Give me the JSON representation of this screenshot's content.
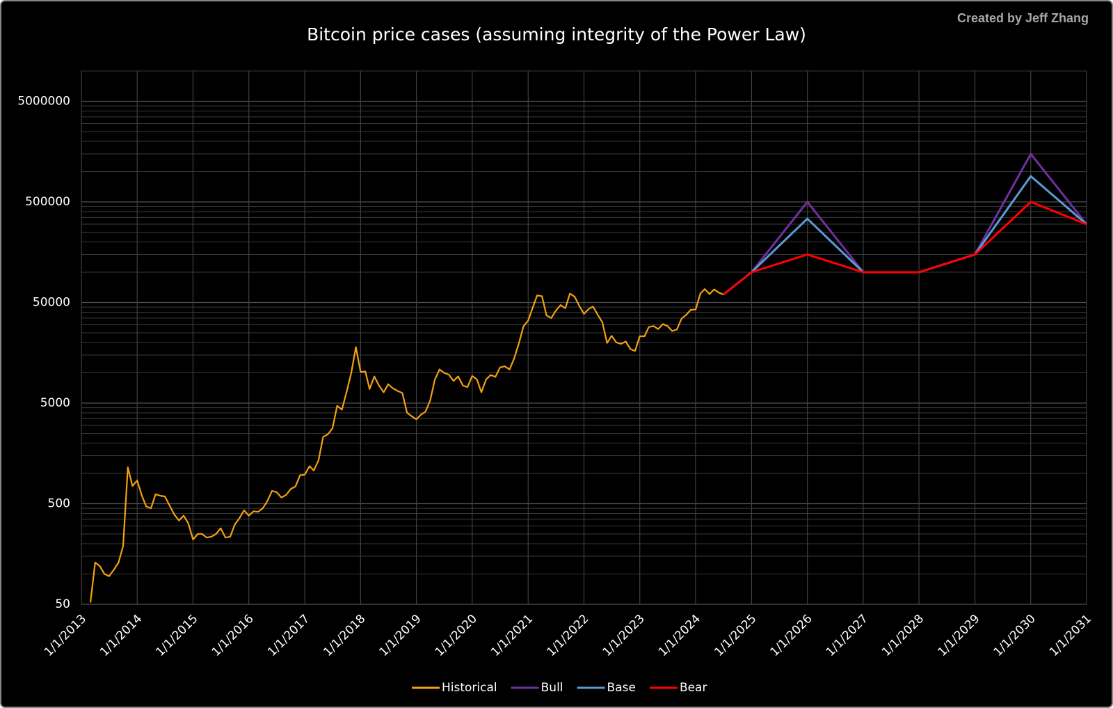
{
  "chart_data": {
    "type": "line",
    "title": "Bitcoin price cases (assuming integrity of the Power Law)",
    "credit": "Created by Jeff Zhang",
    "log_y": true,
    "grid": true,
    "minor_grid": true,
    "legend": "bottom",
    "ylim": [
      50,
      10000000
    ],
    "yticks": [
      50,
      500,
      5000,
      50000,
      500000,
      5000000
    ],
    "xlim": [
      "2013-01-01",
      "2031-01-01"
    ],
    "xticks": [
      {
        "value": "2013-01-01",
        "label": "1/1/2013"
      },
      {
        "value": "2014-01-01",
        "label": "1/1/2014"
      },
      {
        "value": "2015-01-01",
        "label": "1/1/2015"
      },
      {
        "value": "2016-01-01",
        "label": "1/1/2016"
      },
      {
        "value": "2017-01-01",
        "label": "1/1/2017"
      },
      {
        "value": "2018-01-01",
        "label": "1/1/2018"
      },
      {
        "value": "2019-01-01",
        "label": "1/1/2019"
      },
      {
        "value": "2020-01-01",
        "label": "1/1/2020"
      },
      {
        "value": "2021-01-01",
        "label": "1/1/2021"
      },
      {
        "value": "2022-01-01",
        "label": "1/1/2022"
      },
      {
        "value": "2023-01-01",
        "label": "1/1/2023"
      },
      {
        "value": "2024-01-01",
        "label": "1/1/2024"
      },
      {
        "value": "2025-01-01",
        "label": "1/1/2025"
      },
      {
        "value": "2026-01-01",
        "label": "1/1/2026"
      },
      {
        "value": "2027-01-01",
        "label": "1/1/2027"
      },
      {
        "value": "2028-01-01",
        "label": "1/1/2028"
      },
      {
        "value": "2029-01-01",
        "label": "1/1/2029"
      },
      {
        "value": "2030-01-01",
        "label": "1/1/2030"
      },
      {
        "value": "2031-01-01",
        "label": "1/1/2031"
      }
    ],
    "series": [
      {
        "name": "Historical",
        "color": "#f5a10f",
        "x": [
          "2013-03-01",
          "2013-04-01",
          "2013-05-01",
          "2013-06-01",
          "2013-07-01",
          "2013-08-01",
          "2013-09-01",
          "2013-10-01",
          "2013-11-01",
          "2013-12-01",
          "2014-01-01",
          "2014-02-01",
          "2014-03-01",
          "2014-04-01",
          "2014-05-01",
          "2014-06-01",
          "2014-07-01",
          "2014-08-01",
          "2014-09-01",
          "2014-10-01",
          "2014-11-01",
          "2014-12-01",
          "2015-01-01",
          "2015-02-01",
          "2015-03-01",
          "2015-04-01",
          "2015-05-01",
          "2015-06-01",
          "2015-07-01",
          "2015-08-01",
          "2015-09-01",
          "2015-10-01",
          "2015-11-01",
          "2015-12-01",
          "2016-01-01",
          "2016-02-01",
          "2016-03-01",
          "2016-04-01",
          "2016-05-01",
          "2016-06-01",
          "2016-07-01",
          "2016-08-01",
          "2016-09-01",
          "2016-10-01",
          "2016-11-01",
          "2016-12-01",
          "2017-01-01",
          "2017-02-01",
          "2017-03-01",
          "2017-04-01",
          "2017-05-01",
          "2017-06-01",
          "2017-07-01",
          "2017-08-01",
          "2017-09-01",
          "2017-10-01",
          "2017-11-01",
          "2017-12-01",
          "2018-01-01",
          "2018-02-01",
          "2018-03-01",
          "2018-04-01",
          "2018-05-01",
          "2018-06-01",
          "2018-07-01",
          "2018-08-01",
          "2018-09-01",
          "2018-10-01",
          "2018-11-01",
          "2018-12-01",
          "2019-01-01",
          "2019-02-01",
          "2019-03-01",
          "2019-04-01",
          "2019-05-01",
          "2019-06-01",
          "2019-07-01",
          "2019-08-01",
          "2019-09-01",
          "2019-10-01",
          "2019-11-01",
          "2019-12-01",
          "2020-01-01",
          "2020-02-01",
          "2020-03-01",
          "2020-04-01",
          "2020-05-01",
          "2020-06-01",
          "2020-07-01",
          "2020-08-01",
          "2020-09-01",
          "2020-10-01",
          "2020-11-01",
          "2020-12-01",
          "2021-01-01",
          "2021-02-01",
          "2021-03-01",
          "2021-04-01",
          "2021-05-01",
          "2021-06-01",
          "2021-07-01",
          "2021-08-01",
          "2021-09-01",
          "2021-10-01",
          "2021-11-01",
          "2021-12-01",
          "2022-01-01",
          "2022-02-01",
          "2022-03-01",
          "2022-04-01",
          "2022-05-01",
          "2022-06-01",
          "2022-07-01",
          "2022-08-01",
          "2022-09-01",
          "2022-10-01",
          "2022-11-01",
          "2022-12-01",
          "2023-01-01",
          "2023-02-01",
          "2023-03-01",
          "2023-04-01",
          "2023-05-01",
          "2023-06-01",
          "2023-07-01",
          "2023-08-01",
          "2023-09-01",
          "2023-10-01",
          "2023-11-01",
          "2023-12-01",
          "2024-01-01",
          "2024-02-01",
          "2024-03-01",
          "2024-04-01",
          "2024-05-01",
          "2024-06-01",
          "2024-07-01"
        ],
        "values": [
          52,
          130,
          120,
          100,
          95,
          110,
          130,
          190,
          1150,
          750,
          850,
          600,
          470,
          450,
          620,
          600,
          590,
          480,
          390,
          340,
          380,
          320,
          220,
          250,
          250,
          230,
          235,
          250,
          285,
          230,
          235,
          310,
          360,
          430,
          380,
          420,
          415,
          450,
          530,
          670,
          650,
          575,
          610,
          700,
          740,
          960,
          970,
          1180,
          1070,
          1350,
          2300,
          2450,
          2800,
          4700,
          4300,
          6400,
          10000,
          18000,
          10200,
          10300,
          6900,
          9200,
          7500,
          6400,
          7700,
          7000,
          6600,
          6300,
          4000,
          3700,
          3450,
          3850,
          4100,
          5300,
          8500,
          10800,
          10000,
          9600,
          8300,
          9200,
          7500,
          7200,
          9300,
          8600,
          6400,
          8600,
          9500,
          9100,
          11300,
          11600,
          10800,
          13800,
          19600,
          29000,
          33100,
          45100,
          58800,
          57700,
          37300,
          35000,
          41500,
          47100,
          43800,
          61300,
          57000,
          46300,
          38500,
          43200,
          45500,
          37700,
          31800,
          19800,
          23300,
          20000,
          19400,
          20500,
          17200,
          16500,
          23100,
          23100,
          28500,
          29200,
          27200,
          30500,
          29200,
          26000,
          27000,
          34500,
          37700,
          42300,
          42600,
          61200,
          68000,
          60600,
          67500,
          62700,
          60000
        ]
      },
      {
        "name": "Bull",
        "color": "#7030a0",
        "x": [
          "2024-07-01",
          "2025-01-01",
          "2026-01-01",
          "2027-01-01",
          "2028-01-01",
          "2029-01-01",
          "2030-01-01",
          "2031-01-01"
        ],
        "values": [
          60000,
          100000,
          500000,
          100000,
          100000,
          150000,
          1500000,
          300000
        ]
      },
      {
        "name": "Base",
        "color": "#5b9bd5",
        "x": [
          "2024-07-01",
          "2025-01-01",
          "2026-01-01",
          "2027-01-01",
          "2028-01-01",
          "2029-01-01",
          "2030-01-01",
          "2031-01-01"
        ],
        "values": [
          60000,
          100000,
          340000,
          100000,
          100000,
          150000,
          900000,
          300000
        ]
      },
      {
        "name": "Bear",
        "color": "#ff0000",
        "x": [
          "2024-07-01",
          "2025-01-01",
          "2026-01-01",
          "2027-01-01",
          "2028-01-01",
          "2029-01-01",
          "2030-01-01",
          "2031-01-01"
        ],
        "values": [
          60000,
          100000,
          150000,
          100000,
          100000,
          150000,
          500000,
          300000
        ]
      }
    ]
  }
}
